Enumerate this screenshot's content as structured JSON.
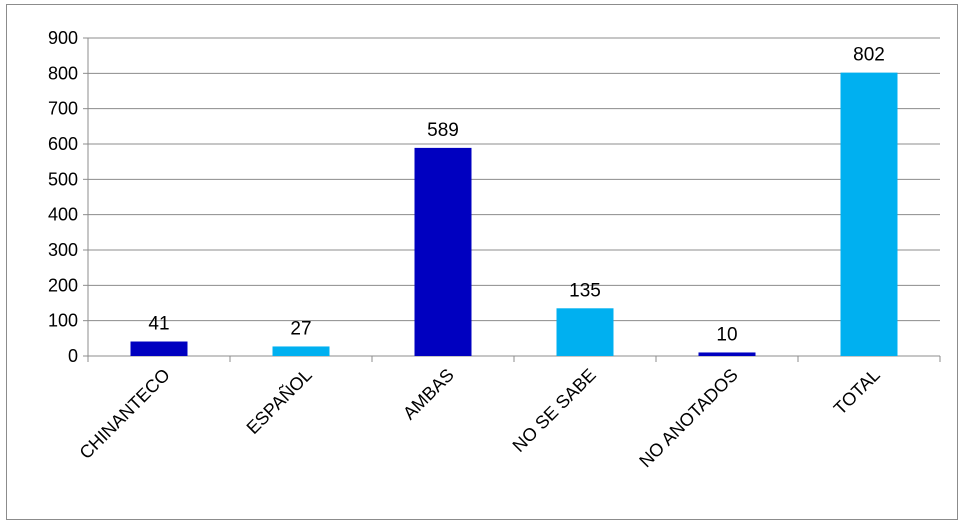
{
  "chart_data": {
    "type": "bar",
    "categories": [
      "CHINANTECO",
      "ESPAÑOL",
      "AMBAS",
      "NO SE SABE",
      "NO ANOTADOS",
      "TOTAL"
    ],
    "values": [
      41,
      27,
      589,
      135,
      10,
      802
    ],
    "colors": [
      "#0000c0",
      "#00b0f0",
      "#0000c0",
      "#00b0f0",
      "#0000c0",
      "#00b0f0"
    ],
    "ylim": [
      0,
      900
    ],
    "yticks": [
      0,
      100,
      200,
      300,
      400,
      500,
      600,
      700,
      800,
      900
    ],
    "grid": true,
    "title": "",
    "xlabel": "",
    "ylabel": ""
  }
}
